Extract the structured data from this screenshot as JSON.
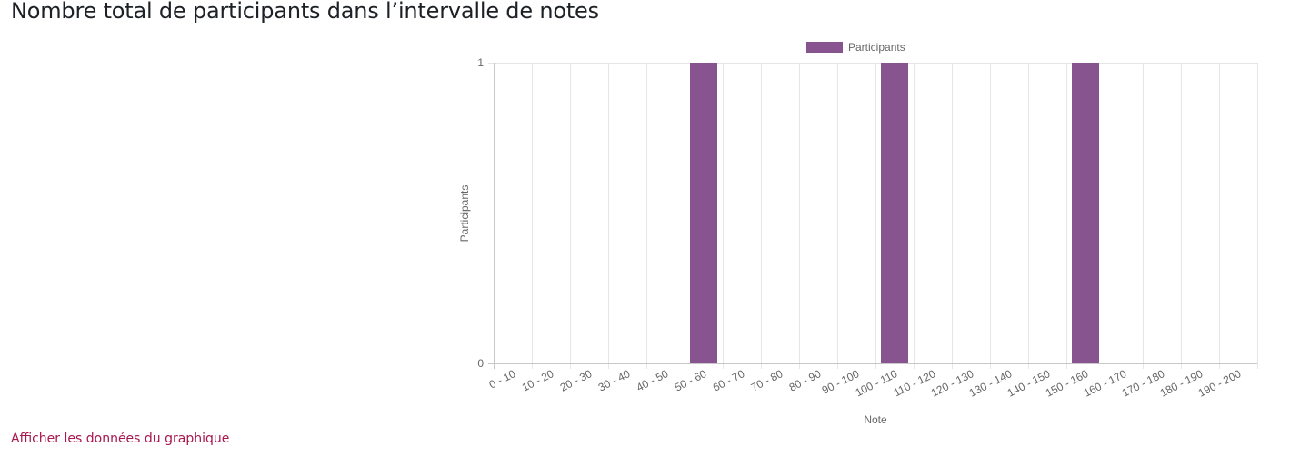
{
  "page": {
    "title": "Nombre total de participants dans l’intervalle de notes",
    "show_data_link": "Afficher les données du graphique"
  },
  "chart_data": {
    "type": "bar",
    "categories": [
      "0 - 10",
      "10 - 20",
      "20 - 30",
      "30 - 40",
      "40 - 50",
      "50 - 60",
      "60 - 70",
      "70 - 80",
      "80 - 90",
      "90 - 100",
      "100 - 110",
      "110 - 120",
      "120 - 130",
      "130 - 140",
      "140 - 150",
      "150 - 160",
      "160 - 170",
      "170 - 180",
      "180 - 190",
      "190 - 200"
    ],
    "series": [
      {
        "name": "Participants",
        "color": "#88548f",
        "values": [
          0,
          0,
          0,
          0,
          0,
          1,
          0,
          0,
          0,
          0,
          1,
          0,
          0,
          0,
          0,
          1,
          0,
          0,
          0,
          0
        ]
      }
    ],
    "xlabel": "Note",
    "ylabel": "Participants",
    "ylim": [
      0,
      1
    ],
    "yticks": [
      0,
      1
    ],
    "grid": true,
    "legend_position": "top"
  }
}
